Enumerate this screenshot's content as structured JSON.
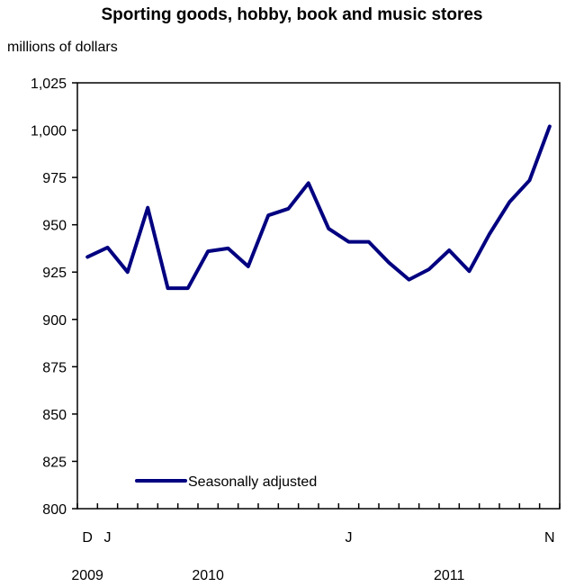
{
  "chart_data": {
    "type": "line",
    "title": "Sporting goods, hobby, book and music stores",
    "subtitle": "millions of dollars",
    "ylim": [
      800,
      1025
    ],
    "yticks": [
      800,
      825,
      850,
      875,
      900,
      925,
      950,
      975,
      1000,
      1025
    ],
    "ytick_labels": [
      "800",
      "825",
      "850",
      "875",
      "900",
      "925",
      "950",
      "975",
      "1,000",
      "1,025"
    ],
    "x": [
      "2009-12",
      "2010-01",
      "2010-02",
      "2010-03",
      "2010-04",
      "2010-05",
      "2010-06",
      "2010-07",
      "2010-08",
      "2010-09",
      "2010-10",
      "2010-11",
      "2010-12",
      "2011-01",
      "2011-02",
      "2011-03",
      "2011-04",
      "2011-05",
      "2011-06",
      "2011-07",
      "2011-08",
      "2011-09",
      "2011-10",
      "2011-11"
    ],
    "xtick_labels": [
      {
        "index": 0,
        "label": "D"
      },
      {
        "index": 1,
        "label": "J"
      },
      {
        "index": 13,
        "label": "J"
      },
      {
        "index": 23,
        "label": "N"
      }
    ],
    "year_labels": [
      {
        "index": 0,
        "label": "2009"
      },
      {
        "index": 6,
        "label": "2010"
      },
      {
        "index": 18,
        "label": "2011"
      }
    ],
    "series": [
      {
        "name": "Seasonally adjusted",
        "color": "#000080",
        "values": [
          933,
          938,
          925,
          959,
          916.5,
          916.5,
          936,
          937.5,
          928,
          955,
          958.5,
          972,
          948,
          941,
          941,
          930,
          921,
          926.5,
          936.5,
          925.5,
          945,
          962,
          973.5,
          1002
        ]
      }
    ],
    "legend": {
      "placement": "bottom-left"
    },
    "grid": false
  }
}
